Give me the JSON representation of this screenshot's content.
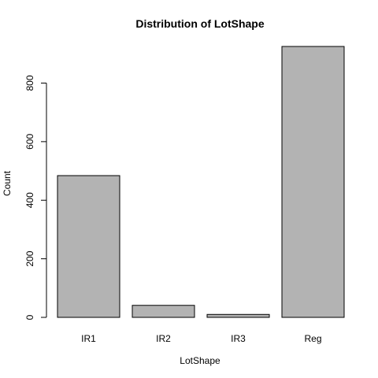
{
  "chart_data": {
    "type": "bar",
    "title": "Distribution of LotShape",
    "xlabel": "LotShape",
    "ylabel": "Count",
    "categories": [
      "IR1",
      "IR2",
      "IR3",
      "Reg"
    ],
    "values": [
      484,
      41,
      10,
      925
    ],
    "ylim": [
      0,
      925
    ],
    "yticks": [
      "0",
      "200",
      "400",
      "600",
      "800"
    ],
    "grid": false,
    "legend": "none",
    "colors": {
      "bar_fill": "#b3b3b3",
      "bar_stroke": "#000000",
      "axis": "#000000"
    }
  }
}
